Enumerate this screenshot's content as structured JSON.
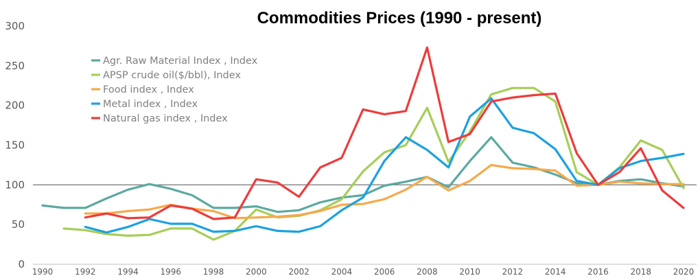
{
  "chart_data": {
    "type": "line",
    "title": "Commodities Prices (1990 - present)",
    "xlabel": "",
    "ylabel": "",
    "xlim": [
      1990,
      2020
    ],
    "ylim": [
      0,
      300
    ],
    "y_ticks": [
      0,
      50,
      100,
      150,
      200,
      250,
      300
    ],
    "x_ticks": [
      1990,
      1992,
      1994,
      1996,
      1998,
      2000,
      2002,
      2004,
      2006,
      2008,
      2010,
      2012,
      2014,
      2016,
      2018,
      2020
    ],
    "reference_line": 100,
    "grid": false,
    "legend_position": "top-left",
    "series": [
      {
        "name": "Agr. Raw Material Index , Index",
        "color": "#5BA9A0",
        "x": [
          1990,
          1991,
          1992,
          1993,
          1994,
          1995,
          1996,
          1997,
          1998,
          1999,
          2000,
          2001,
          2002,
          2003,
          2004,
          2005,
          2006,
          2007,
          2008,
          2009,
          2010,
          2011,
          2012,
          2013,
          2014,
          2015,
          2016,
          2017,
          2018,
          2019,
          2020
        ],
        "values": [
          74,
          71,
          71,
          83,
          94,
          101,
          95,
          87,
          71,
          71,
          73,
          66,
          68,
          78,
          84,
          87,
          99,
          104,
          110,
          97,
          130,
          160,
          128,
          122,
          113,
          102,
          100,
          105,
          107,
          102,
          98
        ]
      },
      {
        "name": "APSP crude oil($/bbl), Index",
        "color": "#A6CE57",
        "x": [
          1991,
          1992,
          1993,
          1994,
          1995,
          1996,
          1997,
          1998,
          1999,
          2000,
          2001,
          2002,
          2003,
          2004,
          2005,
          2006,
          2007,
          2008,
          2009,
          2010,
          2011,
          2012,
          2013,
          2014,
          2015,
          2016,
          2017,
          2018,
          2019,
          2020
        ],
        "values": [
          45,
          43,
          38,
          36,
          37,
          45,
          45,
          31,
          42,
          69,
          59,
          61,
          68,
          82,
          117,
          141,
          150,
          197,
          129,
          167,
          214,
          222,
          222,
          205,
          116,
          100,
          122,
          156,
          144,
          96
        ]
      },
      {
        "name": "Food index , Index",
        "color": "#F7A94A",
        "x": [
          1992,
          1993,
          1994,
          1995,
          1996,
          1997,
          1998,
          1999,
          2000,
          2001,
          2002,
          2003,
          2004,
          2005,
          2006,
          2007,
          2008,
          2009,
          2010,
          2011,
          2012,
          2013,
          2014,
          2015,
          2016,
          2017,
          2018,
          2019,
          2020
        ],
        "values": [
          64,
          64,
          67,
          69,
          75,
          70,
          67,
          58,
          59,
          60,
          62,
          67,
          75,
          76,
          82,
          94,
          110,
          93,
          105,
          125,
          121,
          120,
          118,
          99,
          100,
          104,
          102,
          101,
          101
        ]
      },
      {
        "name": "Metal index , Index",
        "color": "#1BA1E2",
        "x": [
          1992,
          1993,
          1994,
          1995,
          1996,
          1997,
          1998,
          1999,
          2000,
          2001,
          2002,
          2003,
          2004,
          2005,
          2006,
          2007,
          2008,
          2009,
          2010,
          2011,
          2012,
          2013,
          2014,
          2015,
          2016,
          2017,
          2018,
          2019,
          2020
        ],
        "values": [
          47,
          40,
          47,
          57,
          51,
          51,
          41,
          42,
          48,
          42,
          41,
          48,
          68,
          84,
          130,
          160,
          144,
          122,
          186,
          209,
          172,
          165,
          145,
          105,
          100,
          121,
          130,
          134,
          139
        ]
      },
      {
        "name": "Natural gas index , Index",
        "color": "#EE3B3B",
        "x": [
          1992,
          1993,
          1994,
          1995,
          1996,
          1997,
          1998,
          1999,
          2000,
          2001,
          2002,
          2003,
          2004,
          2005,
          2006,
          2007,
          2008,
          2009,
          2010,
          2011,
          2012,
          2013,
          2014,
          2015,
          2016,
          2017,
          2018,
          2019,
          2020
        ],
        "values": [
          59,
          64,
          58,
          59,
          74,
          70,
          57,
          59,
          107,
          103,
          85,
          122,
          134,
          195,
          189,
          193,
          273,
          154,
          164,
          205,
          210,
          213,
          215,
          140,
          100,
          116,
          146,
          93,
          71
        ]
      }
    ]
  }
}
